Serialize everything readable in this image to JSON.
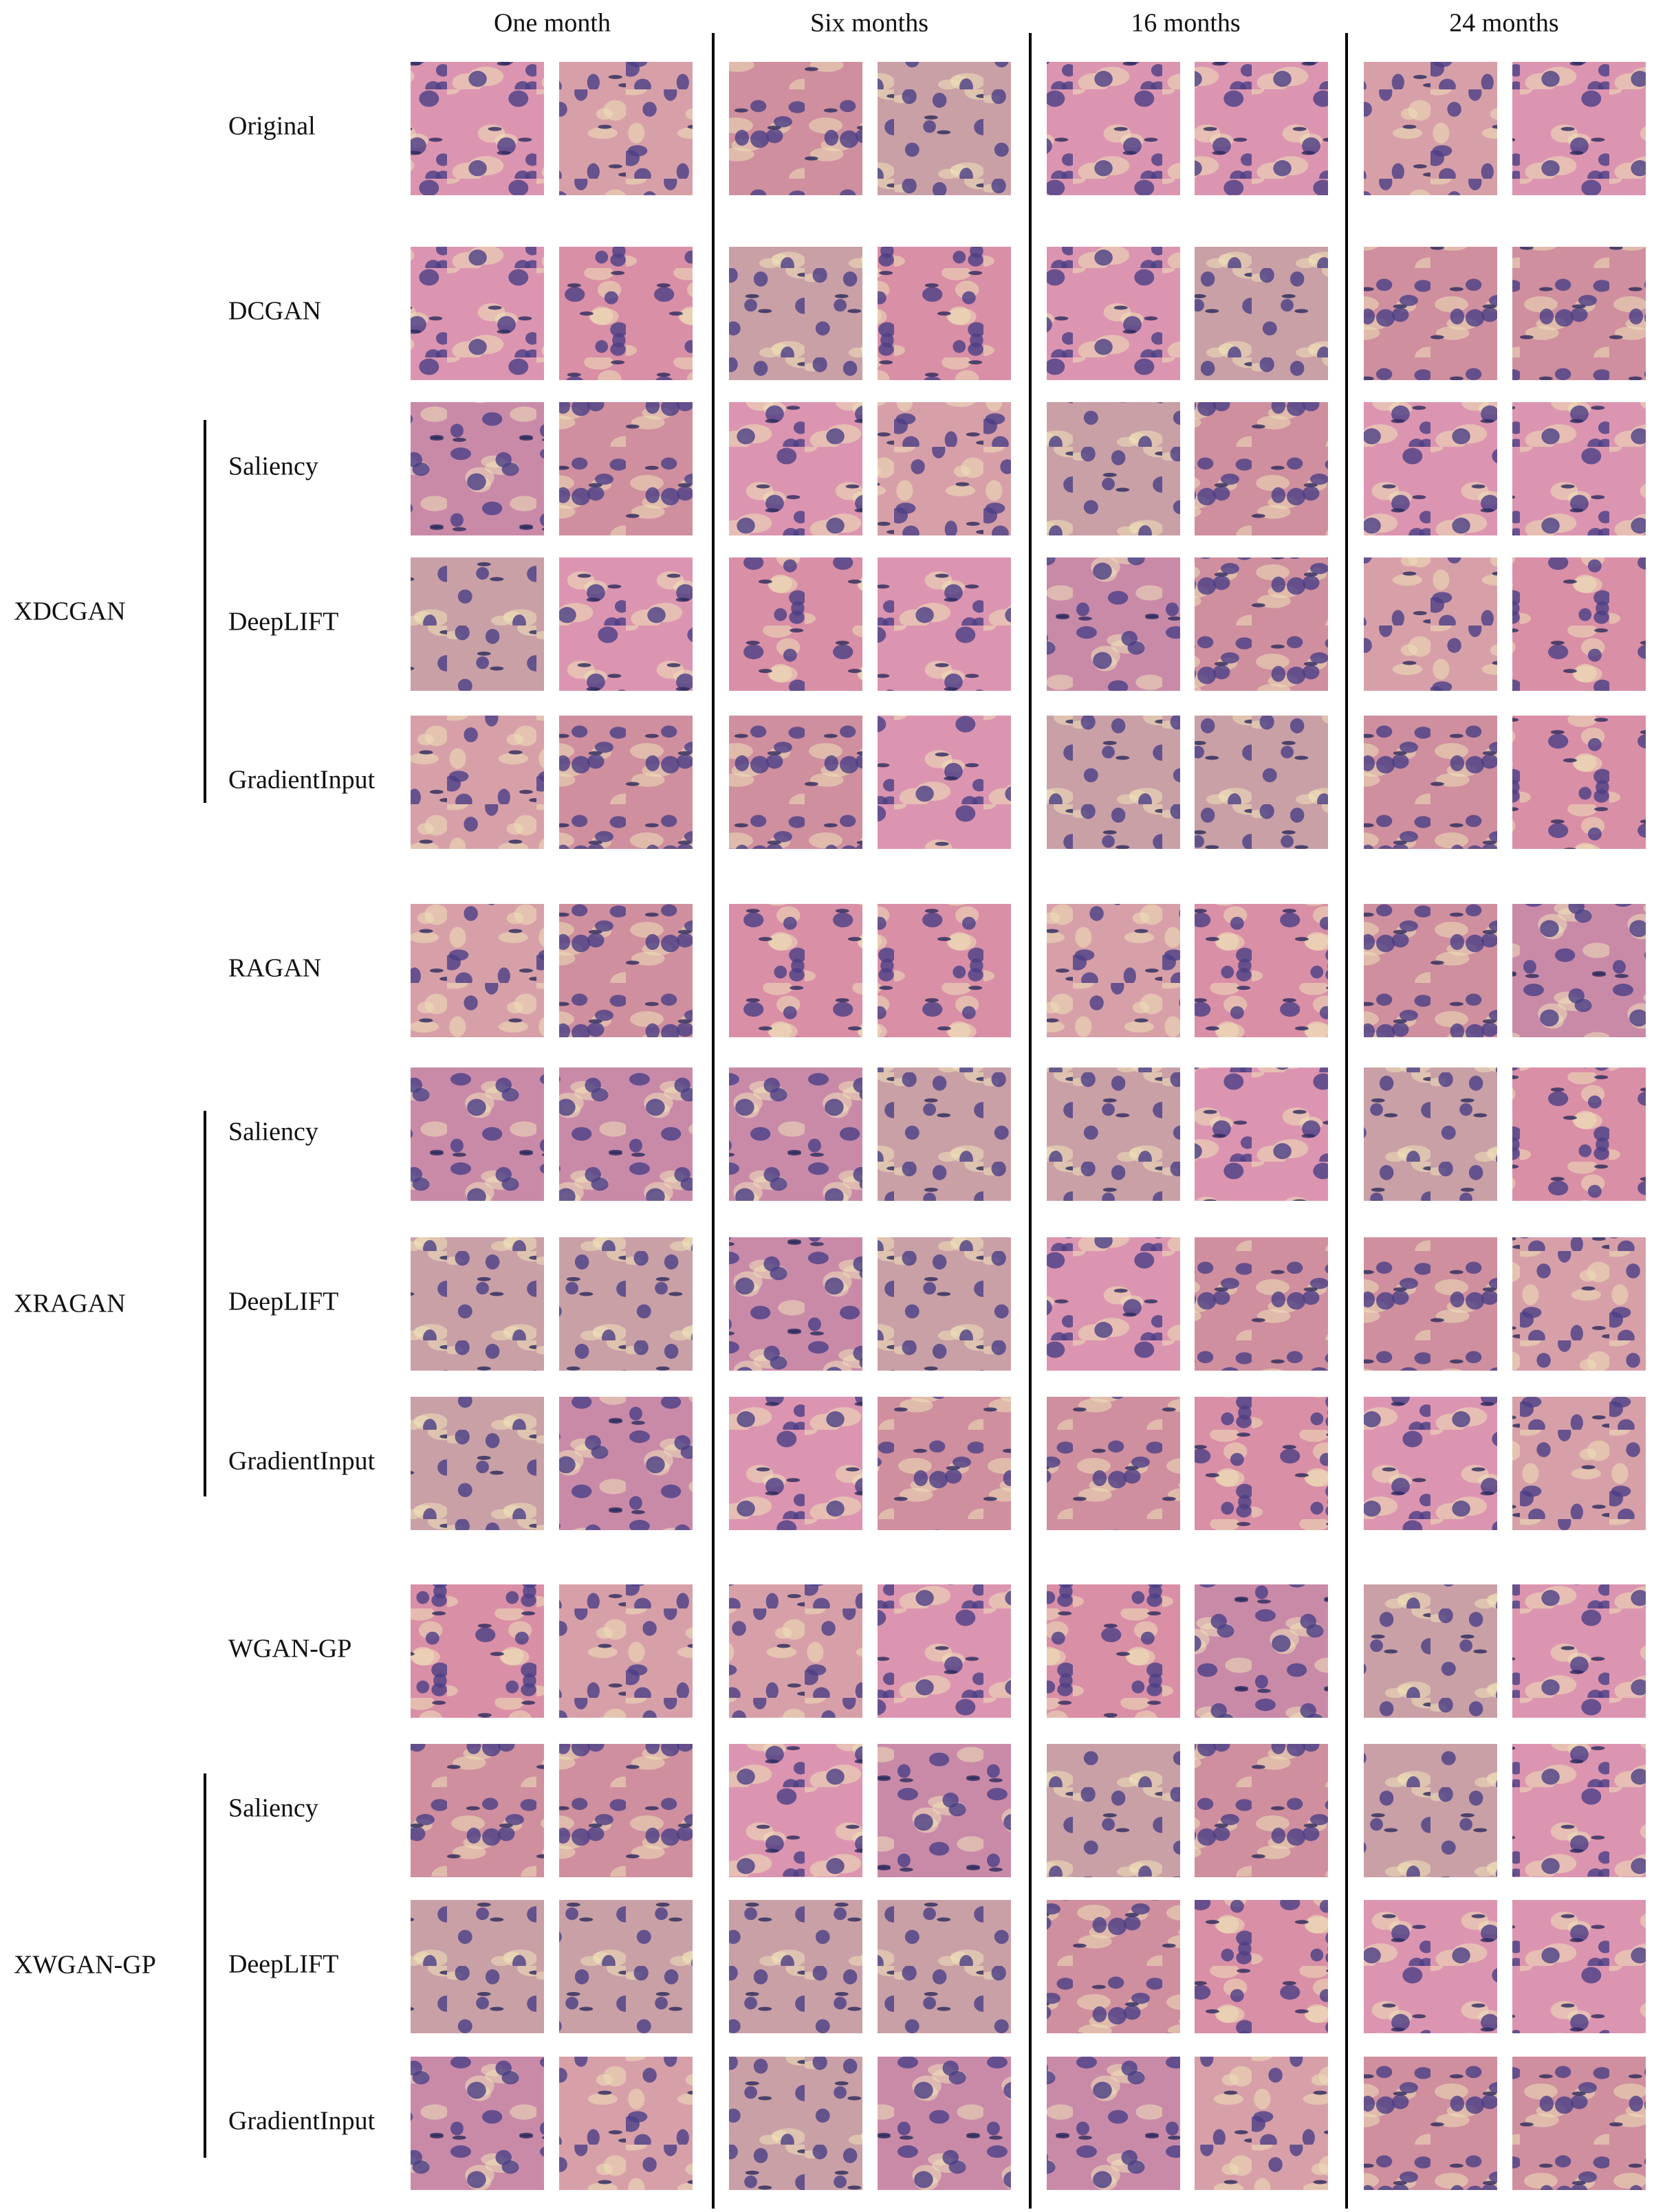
{
  "columns": [
    "One month",
    "Six months",
    "16 months",
    "24 months"
  ],
  "rows": [
    "Original",
    "DCGAN",
    "Saliency",
    "DeepLIFT",
    "GradientInput",
    "RAGAN",
    "Saliency",
    "DeepLIFT",
    "GradientInput",
    "WGAN-GP",
    "Saliency",
    "DeepLIFT",
    "GradientInput"
  ],
  "groups": [
    "XDCGAN",
    "XRAGAN",
    "XWGAN-GP"
  ]
}
